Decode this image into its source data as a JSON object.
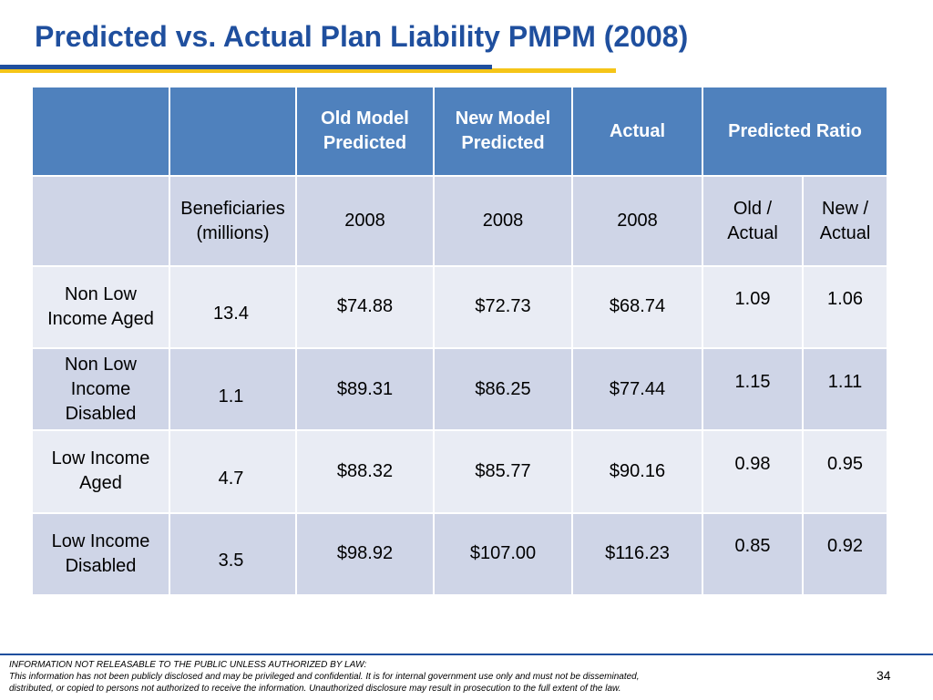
{
  "title": "Predicted vs. Actual Plan Liability PMPM (2008)",
  "table": {
    "header": {
      "col1": "",
      "col2": "",
      "old_model_line1": "Old Model",
      "old_model_line2": "Predicted",
      "new_model_line1": "New Model",
      "new_model_line2": "Predicted",
      "actual": "Actual",
      "predicted_ratio": "Predicted Ratio"
    },
    "subheader": {
      "beneficiaries_line1": "Beneficiaries",
      "beneficiaries_line2": "(millions)",
      "old_year": "2008",
      "new_year": "2008",
      "actual_year": "2008",
      "old_actual_line1": "Old /",
      "old_actual_line2": "Actual",
      "new_actual_line1": "New /",
      "new_actual_line2": "Actual"
    },
    "rows": [
      {
        "label_line1": "Non Low",
        "label_line2": "Income Aged",
        "label_line3": "",
        "beneficiaries": "13.4",
        "old_predicted": "$74.88",
        "new_predicted": "$72.73",
        "actual": "$68.74",
        "old_ratio": "1.09",
        "new_ratio": "1.06"
      },
      {
        "label_line1": "Non Low",
        "label_line2": "Income",
        "label_line3": "Disabled",
        "beneficiaries": "1.1",
        "old_predicted": "$89.31",
        "new_predicted": "$86.25",
        "actual": "$77.44",
        "old_ratio": "1.15",
        "new_ratio": "1.11"
      },
      {
        "label_line1": "Low Income",
        "label_line2": "Aged",
        "label_line3": "",
        "beneficiaries": "4.7",
        "old_predicted": "$88.32",
        "new_predicted": "$85.77",
        "actual": "$90.16",
        "old_ratio": "0.98",
        "new_ratio": "0.95"
      },
      {
        "label_line1": "Low Income",
        "label_line2": "Disabled",
        "label_line3": "",
        "beneficiaries": "3.5",
        "old_predicted": "$98.92",
        "new_predicted": "$107.00",
        "actual": "$116.23",
        "old_ratio": "0.85",
        "new_ratio": "0.92"
      }
    ]
  },
  "footer": {
    "line1": "INFORMATION NOT RELEASABLE TO THE PUBLIC UNLESS AUTHORIZED BY LAW:",
    "line2": "This information has not been publicly disclosed and may be privileged and confidential.  It is for internal government use only and must not be disseminated,",
    "line3": "distributed, or copied to persons not authorized to receive the information.  Unauthorized disclosure may result in prosecution to the full extent of the law.",
    "page_number": "34"
  },
  "colors": {
    "title": "#1f4f9e",
    "header_bg": "#4f81bd",
    "row_dark": "#cfd5e7",
    "row_light": "#e9ecf4",
    "accent_gold": "#f5c518"
  }
}
